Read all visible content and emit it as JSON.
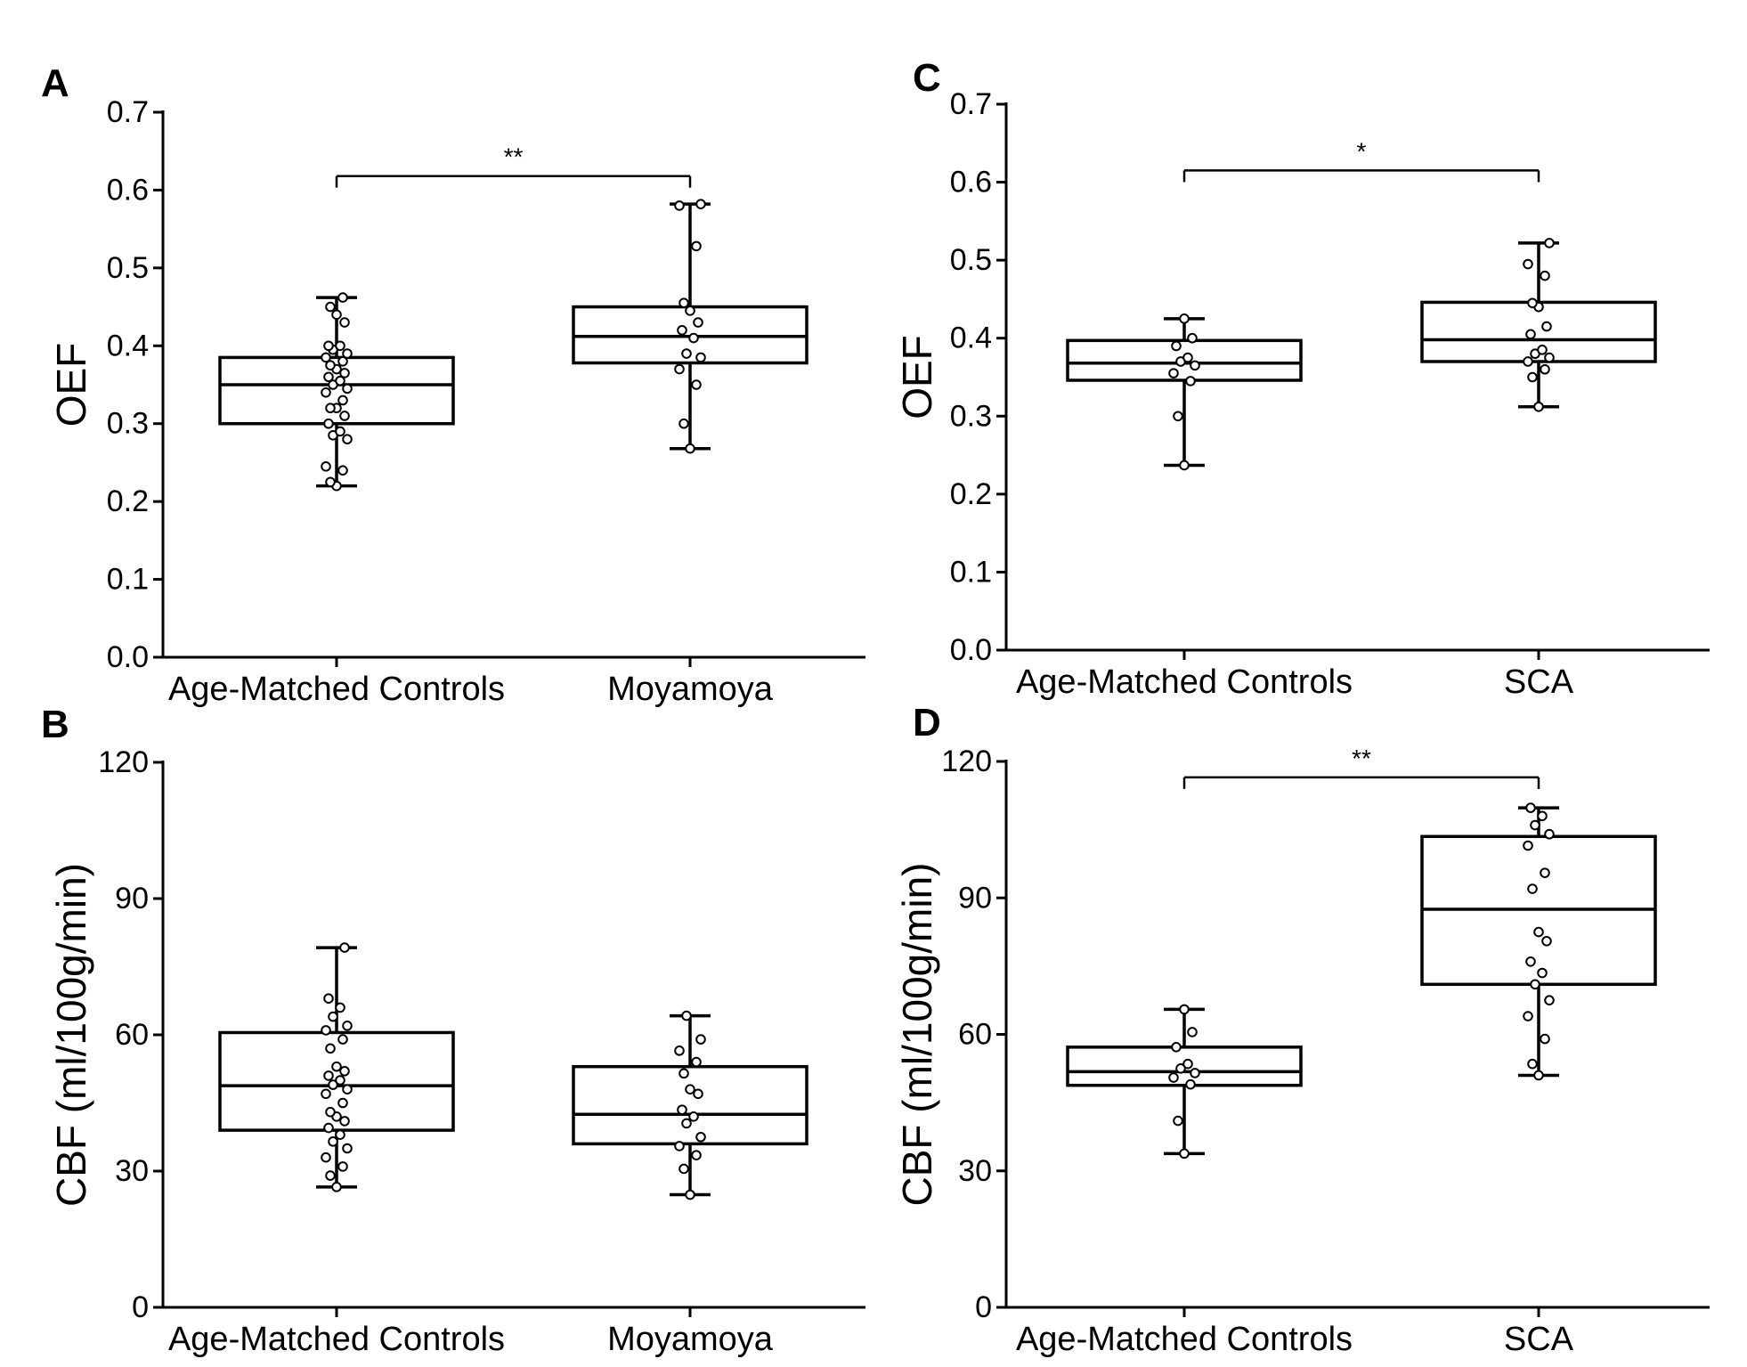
{
  "chart_data": [
    {
      "panel": "A",
      "type": "box",
      "ylabel": "OEF",
      "ylim": [
        0,
        0.7
      ],
      "yticks": [
        0.0,
        0.1,
        0.2,
        0.3,
        0.4,
        0.5,
        0.6,
        0.7
      ],
      "tick_labels": [
        "0.0",
        "0.1",
        "0.2",
        "0.3",
        "0.4",
        "0.5",
        "0.6",
        "0.7"
      ],
      "categories": [
        "Age-Matched Controls",
        "Moyamoya"
      ],
      "boxes": [
        {
          "min": 0.22,
          "q1": 0.3,
          "median": 0.35,
          "q3": 0.385,
          "max": 0.462,
          "points": [
            0.22,
            0.225,
            0.24,
            0.245,
            0.28,
            0.285,
            0.29,
            0.3,
            0.31,
            0.32,
            0.32,
            0.33,
            0.34,
            0.345,
            0.35,
            0.355,
            0.36,
            0.365,
            0.37,
            0.375,
            0.38,
            0.385,
            0.39,
            0.395,
            0.4,
            0.4,
            0.43,
            0.44,
            0.45,
            0.462
          ]
        },
        {
          "min": 0.268,
          "q1": 0.378,
          "median": 0.412,
          "q3": 0.45,
          "max": 0.582,
          "points": [
            0.268,
            0.3,
            0.35,
            0.37,
            0.385,
            0.39,
            0.41,
            0.42,
            0.43,
            0.445,
            0.455,
            0.528,
            0.58,
            0.582
          ]
        }
      ],
      "significance": {
        "label": "**",
        "value": 0.618
      }
    },
    {
      "panel": "B",
      "type": "box",
      "ylabel": "CBF (ml/100g/min)",
      "ylim": [
        0,
        120
      ],
      "yticks": [
        0,
        30,
        60,
        90,
        120
      ],
      "tick_labels": [
        "0",
        "30",
        "60",
        "90",
        "120"
      ],
      "categories": [
        "Age-Matched Controls",
        "Moyamoya"
      ],
      "boxes": [
        {
          "min": 26.5,
          "q1": 39,
          "median": 48.8,
          "q3": 60.5,
          "max": 79.2,
          "points": [
            26.5,
            29,
            31,
            33,
            35,
            36.5,
            38,
            39.5,
            41,
            42,
            43,
            45,
            47,
            48,
            49,
            50,
            51,
            52,
            53,
            57,
            59,
            61,
            62,
            64,
            66,
            68,
            79.2
          ]
        },
        {
          "min": 24.8,
          "q1": 36,
          "median": 42.5,
          "q3": 53,
          "max": 64.2,
          "points": [
            24.8,
            30.5,
            33.5,
            35.5,
            37.5,
            40.5,
            42,
            43.5,
            47,
            48,
            51.5,
            54,
            56.5,
            59,
            64.2
          ]
        }
      ],
      "significance": null
    },
    {
      "panel": "C",
      "type": "box",
      "ylabel": "OEF",
      "ylim": [
        0,
        0.7
      ],
      "yticks": [
        0.0,
        0.1,
        0.2,
        0.3,
        0.4,
        0.5,
        0.6,
        0.7
      ],
      "tick_labels": [
        "0.0",
        "0.1",
        "0.2",
        "0.3",
        "0.4",
        "0.5",
        "0.6",
        "0.7"
      ],
      "categories": [
        "Age-Matched Controls",
        "SCA"
      ],
      "boxes": [
        {
          "min": 0.237,
          "q1": 0.346,
          "median": 0.368,
          "q3": 0.397,
          "max": 0.425,
          "points": [
            0.237,
            0.3,
            0.345,
            0.355,
            0.365,
            0.37,
            0.375,
            0.39,
            0.4,
            0.425
          ]
        },
        {
          "min": 0.312,
          "q1": 0.37,
          "median": 0.398,
          "q3": 0.446,
          "max": 0.522,
          "points": [
            0.312,
            0.35,
            0.36,
            0.37,
            0.375,
            0.38,
            0.385,
            0.405,
            0.415,
            0.44,
            0.445,
            0.48,
            0.495,
            0.522
          ]
        }
      ],
      "significance": {
        "label": "*",
        "value": 0.615
      }
    },
    {
      "panel": "D",
      "type": "box",
      "ylabel": "CBF (ml/100g/min)",
      "ylim": [
        0,
        120
      ],
      "yticks": [
        0,
        30,
        60,
        90,
        120
      ],
      "tick_labels": [
        "0",
        "30",
        "60",
        "90",
        "120"
      ],
      "categories": [
        "Age-Matched Controls",
        "SCA"
      ],
      "boxes": [
        {
          "min": 33.8,
          "q1": 48.8,
          "median": 51.8,
          "q3": 57.2,
          "max": 65.5,
          "points": [
            33.8,
            41,
            49,
            50.5,
            51.5,
            52.5,
            53.5,
            57.2,
            60.5,
            65.5
          ]
        },
        {
          "min": 51,
          "q1": 71,
          "median": 87.5,
          "q3": 103.5,
          "max": 109.8,
          "points": [
            51,
            53.5,
            59,
            64,
            67.5,
            71,
            73.5,
            76,
            80.5,
            82.5,
            92,
            95.5,
            101.5,
            104,
            106,
            108,
            109.8
          ]
        }
      ],
      "significance": {
        "label": "**",
        "value": 116.5
      }
    }
  ]
}
